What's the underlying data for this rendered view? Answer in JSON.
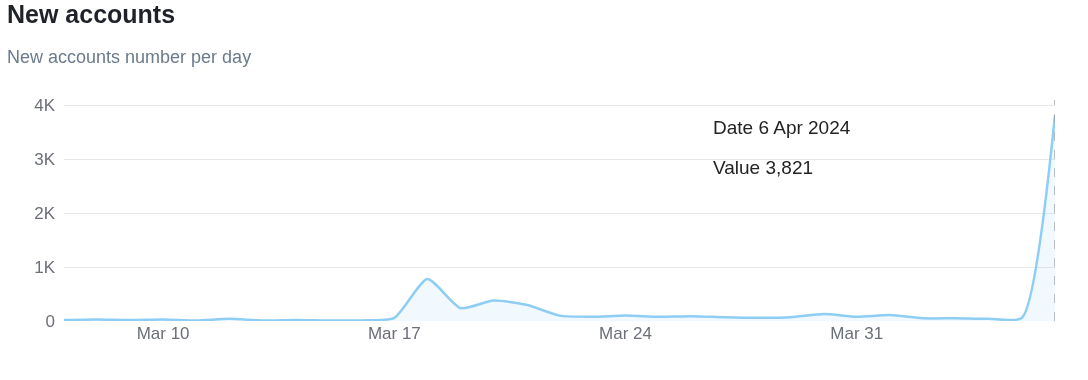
{
  "chart_data": {
    "type": "area",
    "title": "New accounts",
    "subtitle": "New accounts number per day",
    "x": [
      "2024-03-07",
      "2024-03-08",
      "2024-03-09",
      "2024-03-10",
      "2024-03-11",
      "2024-03-12",
      "2024-03-13",
      "2024-03-14",
      "2024-03-15",
      "2024-03-16",
      "2024-03-17",
      "2024-03-18",
      "2024-03-19",
      "2024-03-20",
      "2024-03-21",
      "2024-03-22",
      "2024-03-23",
      "2024-03-24",
      "2024-03-25",
      "2024-03-26",
      "2024-03-27",
      "2024-03-28",
      "2024-03-29",
      "2024-03-30",
      "2024-03-31",
      "2024-04-01",
      "2024-04-02",
      "2024-04-03",
      "2024-04-04",
      "2024-04-05",
      "2024-04-06"
    ],
    "series": [
      {
        "color": "#8ecdf4",
        "values": [
          20,
          30,
          20,
          30,
          10,
          40,
          10,
          20,
          10,
          10,
          60,
          780,
          240,
          380,
          300,
          100,
          80,
          100,
          80,
          90,
          70,
          60,
          70,
          130,
          80,
          110,
          50,
          50,
          40,
          60,
          3821
        ]
      }
    ],
    "xlim": [
      "2024-03-07",
      "2024-04-06"
    ],
    "xticks": [
      {
        "value": "2024-03-10",
        "label": "Mar 10"
      },
      {
        "value": "2024-03-17",
        "label": "Mar 17"
      },
      {
        "value": "2024-03-24",
        "label": "Mar 24"
      },
      {
        "value": "2024-03-31",
        "label": "Mar 31"
      }
    ],
    "ylim": [
      0,
      4100
    ],
    "yticks": [
      0,
      {
        "value": 1000,
        "label": "1K"
      },
      {
        "value": 2000,
        "label": "2K"
      },
      {
        "value": 3000,
        "label": "3K"
      },
      {
        "value": 4000,
        "label": "4K"
      }
    ],
    "grid": "y",
    "marker": "none",
    "line_style": "solid",
    "ref_lines": [
      {
        "axis": "x",
        "value": "2024-04-06",
        "color": "#9aa0a6",
        "line_style": "dashed"
      }
    ],
    "annotations": [
      "Date 6 Apr 2024",
      "Value 3,821"
    ]
  }
}
